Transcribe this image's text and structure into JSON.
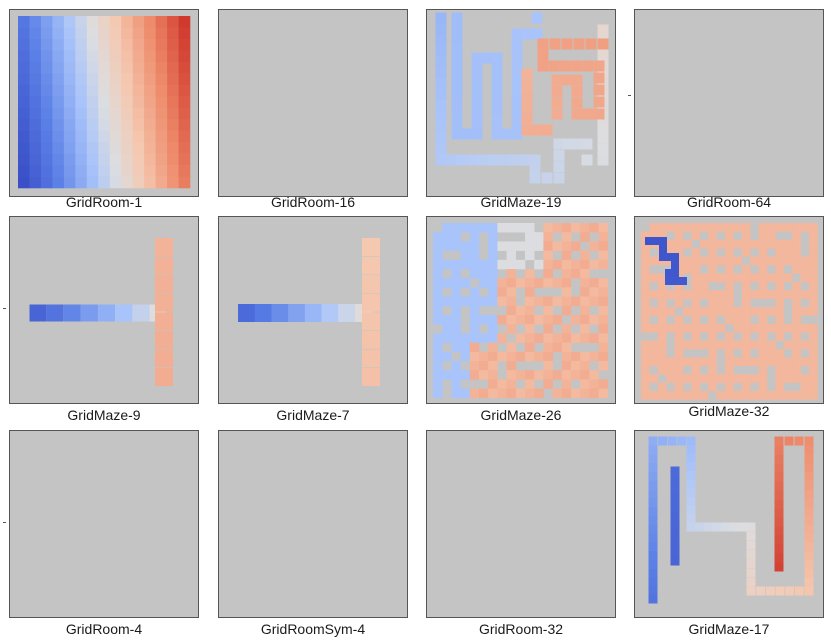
{
  "panels": [
    {
      "label": "GridRoom-1"
    },
    {
      "label": "GridRoom-16"
    },
    {
      "label": "GridMaze-19"
    },
    {
      "label": "GridRoom-64"
    },
    {
      "label": "GridMaze-9"
    },
    {
      "label": "GridMaze-7"
    },
    {
      "label": "GridMaze-26"
    },
    {
      "label": "GridMaze-32"
    },
    {
      "label": "GridRoom-4"
    },
    {
      "label": "GridRoomSym-4"
    },
    {
      "label": "GridRoom-32"
    },
    {
      "label": "GridMaze-17"
    }
  ],
  "colors": {
    "wall": "#c4c4c4",
    "cool_deep": "#3a4fc8",
    "cool": "#5a7fe6",
    "cool_light": "#a9c4fa",
    "neutral": "#dcdde0",
    "warm_light": "#f5c8b0",
    "warm": "#ee8a6a",
    "warm_deep": "#d03a2e"
  }
}
